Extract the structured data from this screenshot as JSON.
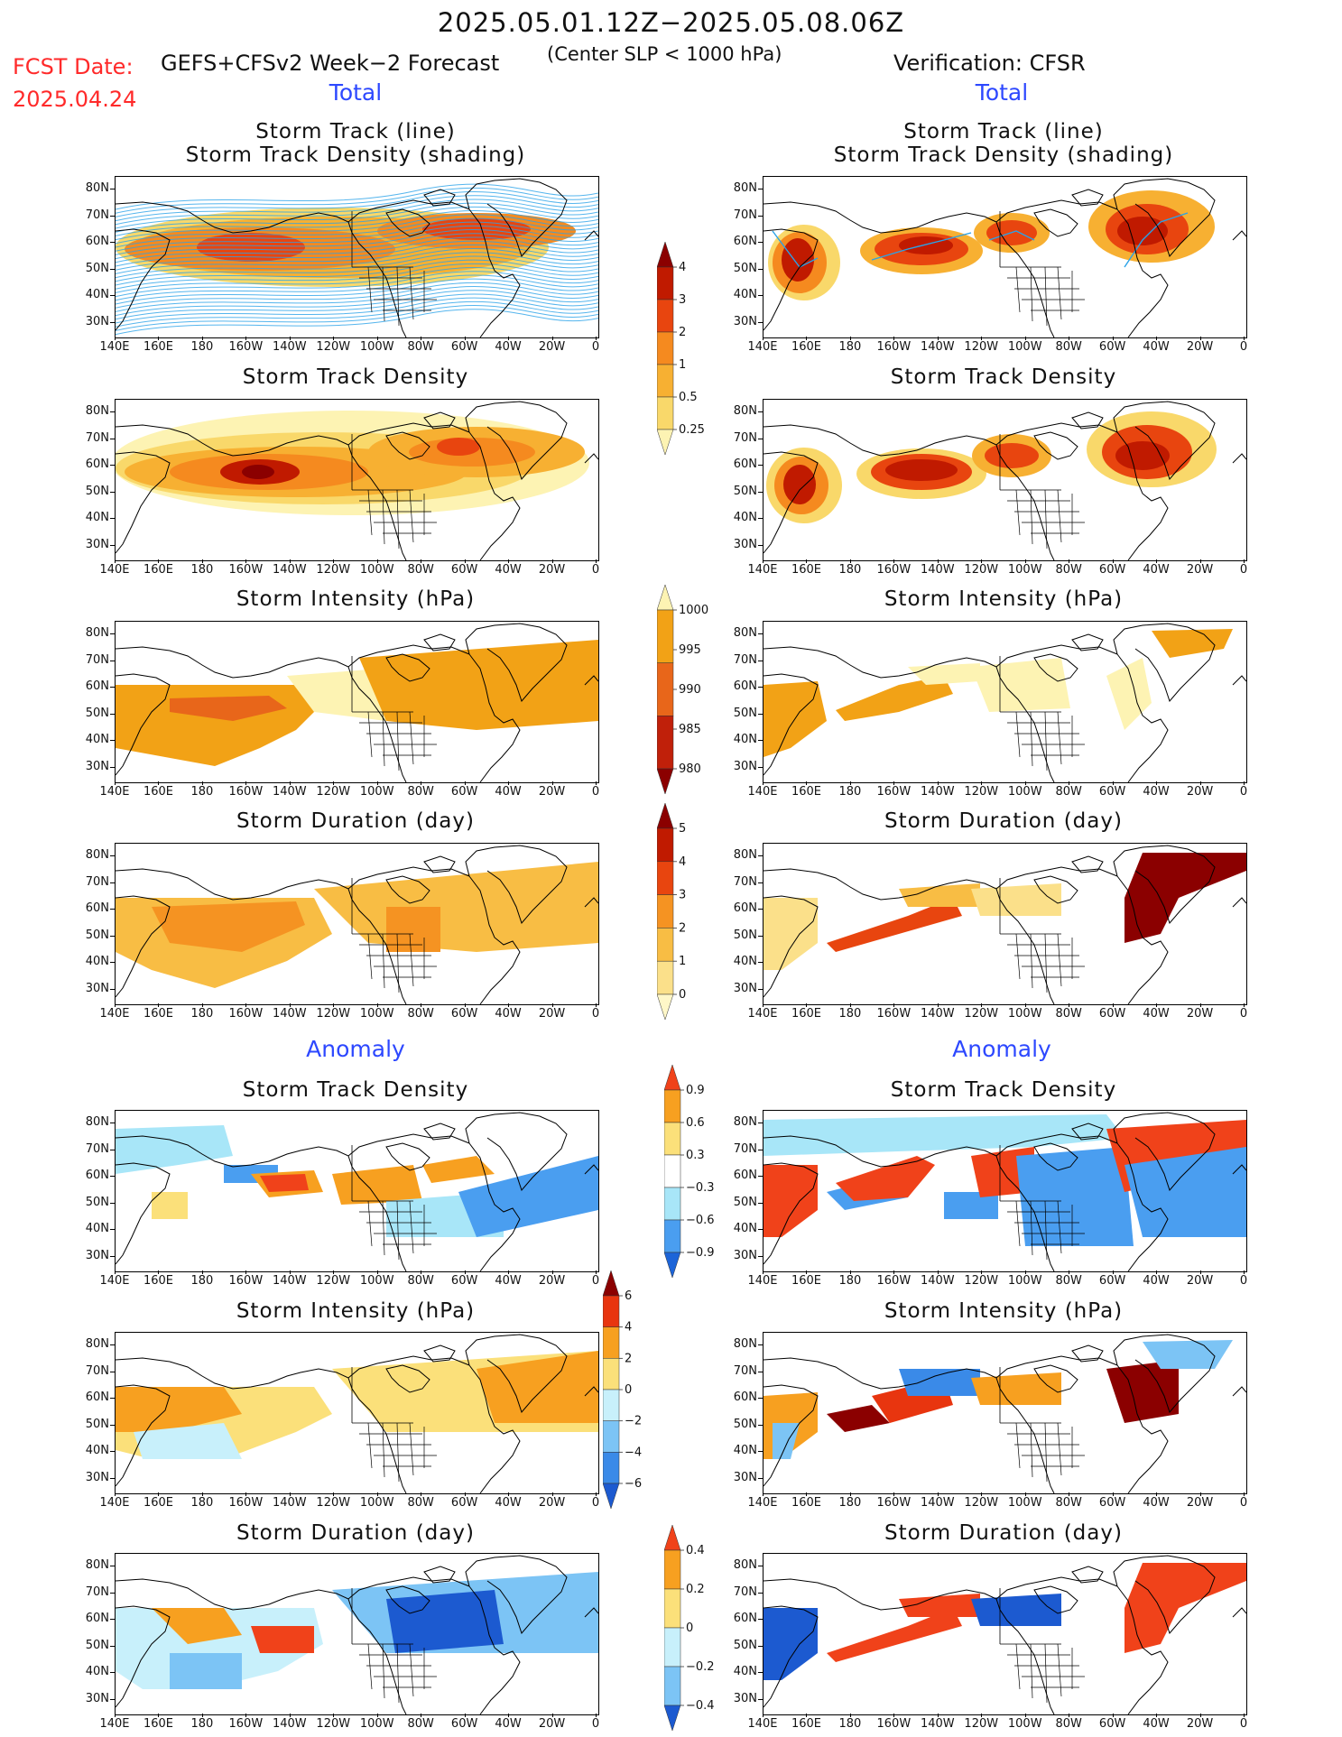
{
  "header": {
    "period": "2025.05.01.12Z−2025.05.08.06Z",
    "fcst_label": "FCST Date:",
    "fcst_date": "2025.04.24",
    "forecast_desc": "GEFS+CFSv2 Week−2 Forecast",
    "criterion": "(Center SLP < 1000 hPa)",
    "verification": "Verification: CFSR"
  },
  "columns": {
    "left_total": "Total",
    "right_total": "Total",
    "left_anomaly": "Anomaly",
    "right_anomaly": "Anomaly"
  },
  "panel_titles": {
    "track_line": "Storm Track (line)",
    "track_shading": "Storm Track Density (shading)",
    "density": "Storm Track Density",
    "intensity": "Storm Intensity (hPa)",
    "duration": "Storm Duration (day)"
  },
  "axes": {
    "lat_labels": [
      "80N",
      "70N",
      "60N",
      "50N",
      "40N",
      "30N"
    ],
    "lon_labels": [
      "140E",
      "160E",
      "180",
      "160W",
      "140W",
      "120W",
      "100W",
      "80W",
      "60W",
      "40W",
      "20W",
      "0"
    ]
  },
  "colorbars": {
    "total_density": {
      "labels": [
        "4",
        "3",
        "2",
        "1",
        "0.5",
        "0.25"
      ],
      "colors": [
        "#8b0000",
        "#c01a00",
        "#e8450f",
        "#f58a1f",
        "#f7b032",
        "#f9d86a",
        "#fdf3b3"
      ]
    },
    "total_intensity": {
      "labels": [
        "1000",
        "995",
        "990",
        "985",
        "980"
      ],
      "colors": [
        "#fdf3b3",
        "#f2a216",
        "#e8661a",
        "#c0200a",
        "#8b0000"
      ]
    },
    "total_duration": {
      "labels": [
        "5",
        "4",
        "3",
        "2",
        "1",
        "0"
      ],
      "colors": [
        "#8b0000",
        "#c01a00",
        "#e8450f",
        "#f59322",
        "#f8bd44",
        "#fbe08a",
        "#fff7c8"
      ]
    },
    "anom_density": {
      "labels": [
        "0.9",
        "0.6",
        "0.3",
        "−0.3",
        "−0.6",
        "−0.9"
      ],
      "colors": [
        "#f0421a",
        "#f7a020",
        "#fbe07a",
        "#ffffff",
        "#a8e6f8",
        "#4a9ef0",
        "#1c64d8"
      ]
    },
    "anom_intensity": {
      "labels": [
        "6",
        "4",
        "2",
        "0",
        "−2",
        "−4",
        "−6"
      ],
      "colors": [
        "#8b0000",
        "#e8350f",
        "#f7a020",
        "#fbe07a",
        "#c8f0fb",
        "#7cc4f5",
        "#3a8ae8",
        "#1c5ad0"
      ]
    },
    "anom_duration": {
      "labels": [
        "0.4",
        "0.2",
        "0",
        "−0.2",
        "−0.4"
      ],
      "colors": [
        "#f0421a",
        "#f7a020",
        "#fbe07a",
        "#c8f0fb",
        "#7cc4f5",
        "#1c5ad0"
      ]
    }
  },
  "palette": {
    "coast": "#000000",
    "track_line": "#2aa2e8",
    "title_blue": "#2d48ff",
    "fcst_red": "#ff2a2a"
  }
}
